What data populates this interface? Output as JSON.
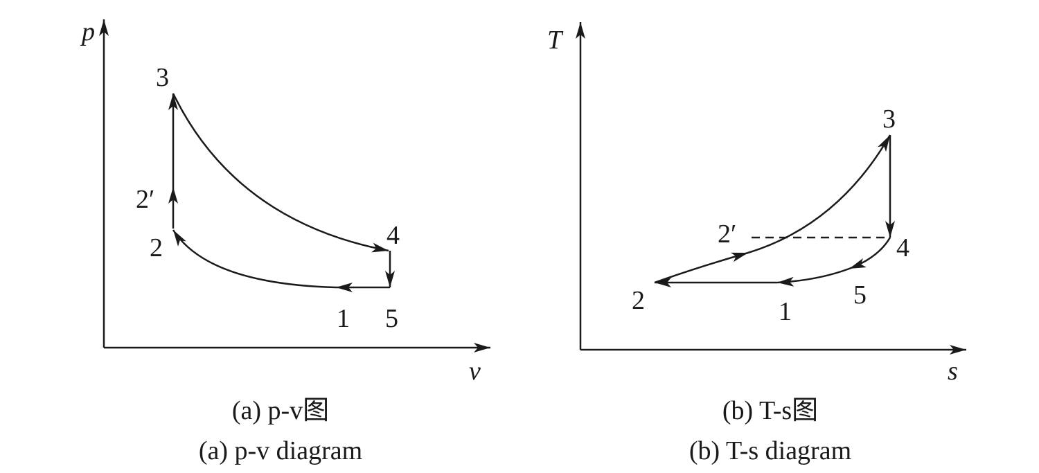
{
  "panels": [
    {
      "axis_y": "p",
      "axis_x": "v",
      "points": [
        "3",
        "2′",
        "2",
        "4",
        "1",
        "5"
      ],
      "caption_zh": "(a) p-v图",
      "caption_en": "(a) p-v diagram"
    },
    {
      "axis_y": "T",
      "axis_x": "s",
      "points": [
        "3",
        "2′",
        "4",
        "5",
        "2",
        "1"
      ],
      "caption_zh": "(b) T-s图",
      "caption_en": "(b) T-s diagram"
    }
  ]
}
